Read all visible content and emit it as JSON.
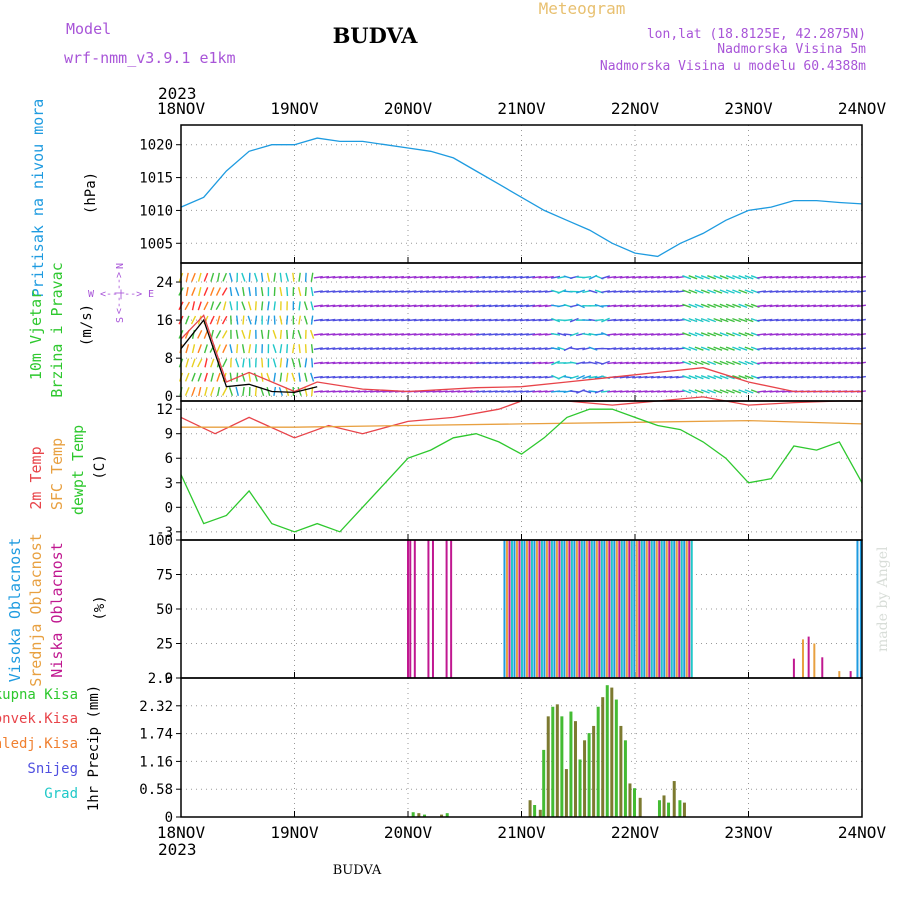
{
  "header": {
    "model_label": "Model",
    "model_name": "wrf-nmm_v3.9.1  e1km",
    "station": "BUDVA",
    "meteogram": "Meteogram",
    "lonlat": "lon,lat (18.8125E, 42.2875N)",
    "elevation": "Nadmorska Visina 5m",
    "model_elevation": "Nadmorska Visina u modelu 60.4388m",
    "footer_station": "BUDVA",
    "watermark": "made by Angel"
  },
  "time_axis": {
    "year": "2023",
    "labels": [
      "18NOV",
      "19NOV",
      "20NOV",
      "21NOV",
      "22NOV",
      "23NOV",
      "24NOV"
    ]
  },
  "panels": {
    "pressure": {
      "ylabel_1": "Pritisak na nivou mora",
      "ylabel_2": "(hPa)"
    },
    "wind": {
      "ylabel_1": "10m Vjetar",
      "ylabel_2": "Brzina i Pravac",
      "ylabel_3": "(m/s)",
      "compass_n": "N",
      "compass_s": "S",
      "compass_w": "W",
      "compass_e": "E",
      "compass_v": "<--|-->"
    },
    "temp": {
      "ylabel_1": "2m Temp",
      "ylabel_2": "SFC Temp",
      "ylabel_3": "dewpt Temp",
      "ylabel_4": "(C)"
    },
    "cloud": {
      "ylabel_1": "Visoka Oblacnost",
      "ylabel_2": "Srednja Oblacnost",
      "ylabel_3": "Niska Oblacnost",
      "ylabel_4": "(%)"
    },
    "precip": {
      "ylabel": "1hr Precip (mm)",
      "legend": [
        "Ukupna Kisa",
        "Konvek.Kisa",
        "Zaledj.Kisa",
        "Snijeg",
        "Grad"
      ]
    }
  },
  "colors": {
    "pressure": "#1e9be0",
    "temp": "#e8444a",
    "sfc": "#e8a040",
    "dew": "#2ec82e",
    "high_cloud": "#1e9be0",
    "mid_cloud": "#e8a040",
    "low_cloud": "#c01890",
    "rain": "#44bb33",
    "conv": "#e84444",
    "frz": "#f08030",
    "snow": "#5050e0",
    "grad": "#20c8c8"
  },
  "chart_data": [
    {
      "type": "line",
      "name": "pressure",
      "x_unit": "days since 18NOV 00UTC",
      "ylim": [
        1002,
        1023
      ],
      "yticks": [
        1005,
        1010,
        1015,
        1020
      ],
      "x": [
        0,
        0.2,
        0.4,
        0.6,
        0.8,
        1.0,
        1.2,
        1.4,
        1.6,
        1.8,
        2.0,
        2.2,
        2.4,
        2.6,
        2.8,
        3.0,
        3.2,
        3.4,
        3.6,
        3.8,
        4.0,
        4.2,
        4.4,
        4.6,
        4.8,
        5.0,
        5.2,
        5.4,
        5.6,
        5.8,
        6.0
      ],
      "y": [
        1010.5,
        1012,
        1016,
        1019,
        1020,
        1020,
        1021,
        1020.5,
        1020.5,
        1020,
        1019.5,
        1019,
        1018,
        1016,
        1014,
        1012,
        1010,
        1008.5,
        1007,
        1005,
        1003.5,
        1003,
        1005,
        1006.5,
        1008.5,
        1010,
        1010.5,
        1011.5,
        1011.5,
        1011.2,
        1011
      ]
    },
    {
      "type": "line",
      "name": "temperature",
      "ylim": [
        -4,
        13
      ],
      "yticks": [
        -3,
        0,
        3,
        6,
        9,
        12
      ],
      "series": [
        {
          "key": "t2m",
          "x": [
            0,
            0.3,
            0.6,
            1.0,
            1.3,
            1.6,
            2.0,
            2.4,
            2.8,
            3.0,
            3.4,
            3.8,
            4.2,
            4.6,
            5.0,
            5.4,
            5.8,
            6.0
          ],
          "y": [
            11,
            9,
            11,
            8.5,
            10,
            9,
            10.5,
            11,
            12,
            13,
            13,
            12.5,
            13,
            13.5,
            12.5,
            12.8,
            13,
            13
          ]
        },
        {
          "key": "sfc",
          "x": [
            0,
            1.0,
            2.0,
            3.0,
            4.0,
            5.0,
            6.0
          ],
          "y": [
            9.8,
            9.8,
            10,
            10.2,
            10.4,
            10.6,
            10.2
          ]
        },
        {
          "key": "dew",
          "x": [
            0,
            0.2,
            0.4,
            0.6,
            0.8,
            1.0,
            1.2,
            1.4,
            1.6,
            1.8,
            2.0,
            2.2,
            2.4,
            2.6,
            2.8,
            3.0,
            3.2,
            3.4,
            3.6,
            3.8,
            4.0,
            4.2,
            4.4,
            4.6,
            4.8,
            5.0,
            5.2,
            5.4,
            5.6,
            5.8,
            6.0
          ],
          "y": [
            4,
            -2,
            -1,
            2,
            -2,
            -3,
            -2,
            -3,
            0,
            3,
            6,
            7,
            8.5,
            9,
            8,
            6.5,
            8.5,
            11,
            12,
            12,
            11,
            10,
            9.5,
            8,
            6,
            3,
            3.5,
            7.5,
            7,
            8,
            3
          ]
        }
      ]
    },
    {
      "type": "bar",
      "name": "cloud_cover",
      "ylim": [
        0,
        100
      ],
      "yticks": [
        0,
        25,
        50,
        75,
        100
      ],
      "low_bars_x": [
        2.0,
        2.02,
        2.06,
        2.18,
        2.22,
        2.34,
        2.38
      ],
      "overcast_range": [
        2.85,
        4.5
      ],
      "late_bars": [
        [
          5.4,
          14
        ],
        [
          5.48,
          28
        ],
        [
          5.53,
          30
        ],
        [
          5.58,
          25
        ],
        [
          5.65,
          15
        ],
        [
          5.8,
          5
        ],
        [
          5.9,
          5
        ],
        [
          5.96,
          100
        ],
        [
          5.99,
          100
        ]
      ]
    },
    {
      "type": "bar",
      "name": "precip_1hr",
      "ylim": [
        0,
        2.9
      ],
      "yticks": [
        0,
        0.58,
        1.16,
        1.74,
        2.32,
        2.9
      ],
      "bars": [
        [
          2.05,
          0.1
        ],
        [
          2.1,
          0.08
        ],
        [
          2.15,
          0.05
        ],
        [
          2.3,
          0.05
        ],
        [
          2.35,
          0.08
        ],
        [
          3.08,
          0.35
        ],
        [
          3.12,
          0.25
        ],
        [
          3.17,
          0.15
        ],
        [
          3.2,
          1.4
        ],
        [
          3.24,
          2.1
        ],
        [
          3.28,
          2.3
        ],
        [
          3.32,
          2.35
        ],
        [
          3.36,
          2.1
        ],
        [
          3.4,
          1.0
        ],
        [
          3.44,
          2.2
        ],
        [
          3.48,
          2.0
        ],
        [
          3.52,
          1.2
        ],
        [
          3.56,
          1.6
        ],
        [
          3.6,
          1.75
        ],
        [
          3.64,
          1.9
        ],
        [
          3.68,
          2.3
        ],
        [
          3.72,
          2.5
        ],
        [
          3.76,
          2.75
        ],
        [
          3.8,
          2.7
        ],
        [
          3.84,
          2.45
        ],
        [
          3.88,
          1.9
        ],
        [
          3.92,
          1.6
        ],
        [
          3.96,
          0.7
        ],
        [
          4.0,
          0.6
        ],
        [
          4.05,
          0.4
        ],
        [
          4.22,
          0.35
        ],
        [
          4.26,
          0.45
        ],
        [
          4.3,
          0.3
        ],
        [
          4.35,
          0.75
        ],
        [
          4.4,
          0.35
        ],
        [
          4.44,
          0.3
        ]
      ]
    },
    {
      "type": "barbs",
      "name": "wind_10m",
      "ylim": [
        -1,
        28
      ],
      "yticks": [
        0,
        8,
        16,
        24
      ],
      "speed": {
        "x": [
          0,
          0.2,
          0.4,
          0.6,
          1.0,
          1.2,
          1.6,
          2.0,
          2.6,
          3.0,
          3.4,
          3.8,
          4.2,
          4.6,
          5.0,
          5.4,
          6.0
        ],
        "y": [
          12,
          17,
          3,
          5,
          1,
          3,
          1.5,
          1,
          1.8,
          2,
          3,
          4,
          5,
          6,
          3,
          1,
          1
        ]
      },
      "gust": {
        "x": [
          0,
          0.2,
          0.4,
          0.6,
          0.8,
          1.0,
          1.2
        ],
        "y": [
          10,
          16,
          2,
          2.5,
          1,
          0.8,
          2
        ]
      }
    }
  ]
}
